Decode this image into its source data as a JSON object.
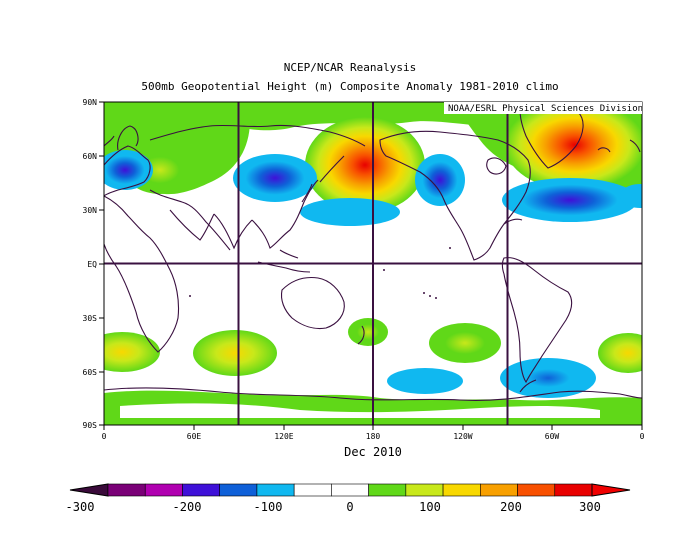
{
  "title_line1": "NCEP/NCAR Reanalysis",
  "title_line2": "500mb Geopotential Height (m) Composite Anomaly 1981-2010 climo",
  "credit": "NOAA/ESRL Physical Sciences Division",
  "period_label": "Dec 2010",
  "lat_labels": [
    "90N",
    "60N",
    "30N",
    "EQ",
    "30S",
    "60S",
    "90S"
  ],
  "lon_labels": [
    "0",
    "60E",
    "120E",
    "180",
    "120W",
    "60W",
    "0"
  ],
  "colorbar": {
    "ticks": [
      "-300",
      "-200",
      "-100",
      "0",
      "100",
      "200",
      "300"
    ],
    "colors": [
      "#7a0077",
      "#b000b0",
      "#3f10d8",
      "#0f60d8",
      "#10b8f0",
      "#ffffff",
      "#ffffff",
      "#60d818",
      "#c8e81a",
      "#f8d800",
      "#f8a000",
      "#f85000",
      "#e80000"
    ],
    "left_arrow_color": "#3a0a3a",
    "right_arrow_color": "#f00000"
  },
  "colors": {
    "coastline": "#3a1040",
    "grid": "#3a1040"
  }
}
